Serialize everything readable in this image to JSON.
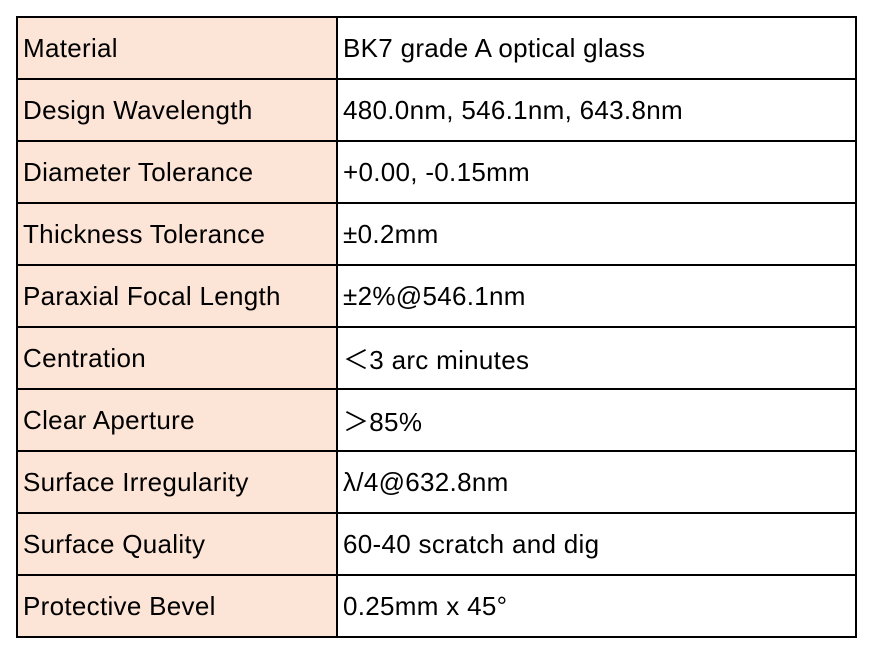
{
  "table": {
    "rows": [
      [
        "Material",
        "BK7 grade A optical glass"
      ],
      [
        "Design Wavelength",
        "480.0nm, 546.1nm, 643.8nm"
      ],
      [
        "Diameter Tolerance",
        "+0.00, -0.15mm"
      ],
      [
        "Thickness Tolerance",
        "±0.2mm"
      ],
      [
        "Paraxial Focal Length",
        "±2%@546.1nm"
      ],
      [
        "Centration",
        "＜3 arc minutes"
      ],
      [
        "Clear Aperture",
        "＞85%"
      ],
      [
        "Surface Irregularity",
        "λ/4@632.8nm"
      ],
      [
        "Surface Quality",
        "60-40 scratch and dig"
      ],
      [
        "Protective Bevel",
        "0.25mm x 45°"
      ]
    ]
  }
}
